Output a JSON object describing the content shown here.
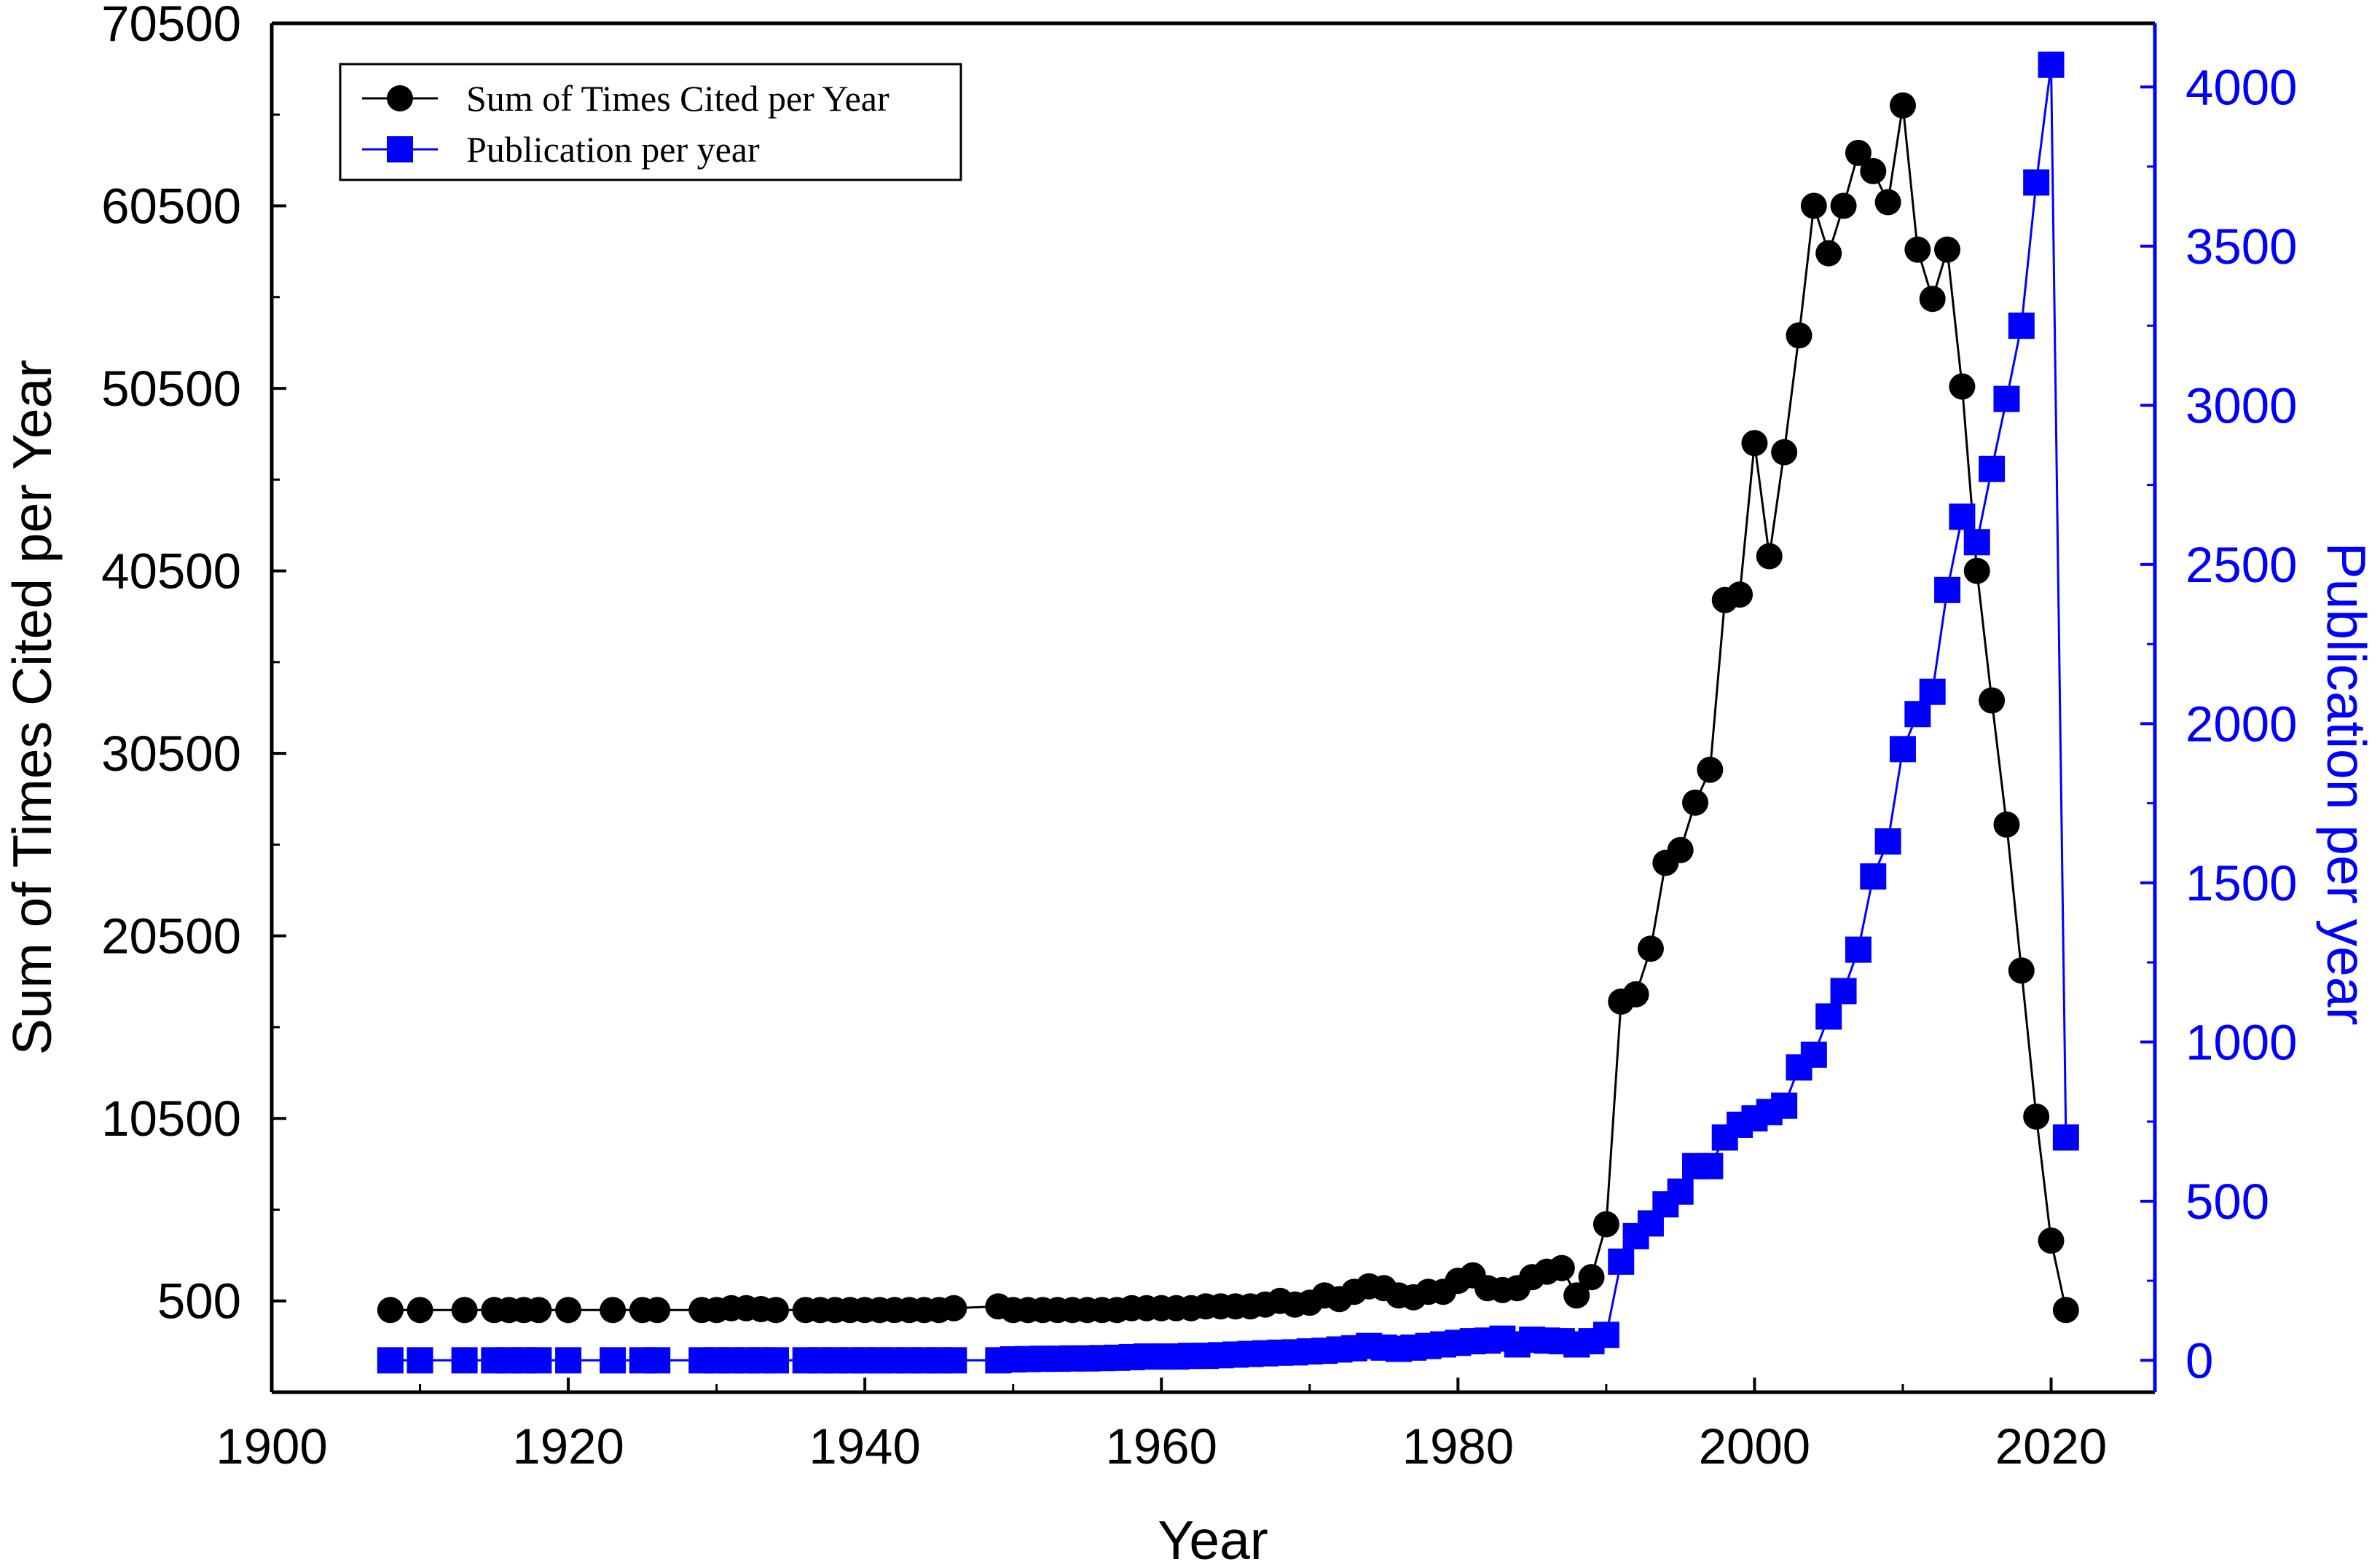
{
  "chart_data": {
    "type": "line",
    "title": "",
    "xlabel": "Year",
    "ylabel_left": "Sum of Times Cited per Year",
    "ylabel_right": "Publication per year",
    "xlim": [
      1900,
      2027
    ],
    "ylim_left": [
      -4500,
      70500
    ],
    "ylim_right": [
      -100,
      4200
    ],
    "x_ticks": [
      1900,
      1920,
      1940,
      1960,
      1980,
      2000,
      2020
    ],
    "y_left_ticks": [
      500,
      10500,
      20500,
      30500,
      40500,
      50500,
      60500,
      70500
    ],
    "y_right_ticks": [
      0,
      500,
      1000,
      1500,
      2000,
      2500,
      3000,
      3500,
      4000
    ],
    "grid": false,
    "legend_position": "top-left",
    "colors": {
      "cited": "#000000",
      "publication": "#0000ff",
      "right_axis": "#0000ff"
    },
    "series": [
      {
        "name": "Sum of Times Cited per Year",
        "axis": "left",
        "marker": "circle",
        "x": [
          1908,
          1910,
          1913,
          1915,
          1916,
          1917,
          1918,
          1920,
          1923,
          1925,
          1926,
          1929,
          1930,
          1931,
          1932,
          1933,
          1934,
          1936,
          1937,
          1938,
          1939,
          1940,
          1941,
          1942,
          1943,
          1944,
          1945,
          1946,
          1949,
          1950,
          1951,
          1952,
          1953,
          1954,
          1955,
          1956,
          1957,
          1958,
          1959,
          1960,
          1961,
          1962,
          1963,
          1964,
          1965,
          1966,
          1967,
          1968,
          1969,
          1970,
          1971,
          1972,
          1973,
          1974,
          1975,
          1976,
          1977,
          1978,
          1979,
          1980,
          1981,
          1982,
          1983,
          1984,
          1985,
          1986,
          1987,
          1988,
          1989,
          1990,
          1991,
          1992,
          1993,
          1994,
          1995,
          1996,
          1997,
          1998,
          1999,
          2000,
          2001,
          2002,
          2003,
          2004,
          2005,
          2006,
          2007,
          2008,
          2009,
          2010,
          2011,
          2012,
          2013,
          2014,
          2015,
          2016,
          2017,
          2018,
          2019,
          2020,
          2021
        ],
        "values": [
          0,
          0,
          0,
          0,
          0,
          0,
          0,
          0,
          0,
          0,
          0,
          0,
          0,
          100,
          100,
          50,
          0,
          0,
          0,
          0,
          0,
          0,
          0,
          0,
          0,
          0,
          0,
          100,
          200,
          0,
          0,
          0,
          0,
          0,
          0,
          0,
          0,
          100,
          100,
          100,
          100,
          100,
          200,
          200,
          200,
          200,
          300,
          500,
          300,
          400,
          800,
          600,
          1000,
          1300,
          1200,
          800,
          700,
          1000,
          1000,
          1600,
          1900,
          1200,
          1100,
          1200,
          1800,
          2100,
          2300,
          800,
          1800,
          4700,
          16900,
          17300,
          19800,
          24500,
          25200,
          27800,
          29600,
          38900,
          39200,
          47500,
          41300,
          47000,
          53400,
          60500,
          57900,
          60500,
          63400,
          62400,
          60700,
          66000,
          58100,
          55400,
          58100,
          50600,
          40500,
          33400,
          26600,
          18600,
          10600,
          3800,
          0
        ],
        "values_note": ""
      },
      {
        "name": "Publication per year",
        "axis": "right",
        "marker": "square",
        "x": [
          1908,
          1910,
          1913,
          1915,
          1916,
          1917,
          1918,
          1920,
          1923,
          1925,
          1926,
          1929,
          1930,
          1931,
          1932,
          1933,
          1934,
          1936,
          1937,
          1938,
          1939,
          1940,
          1941,
          1942,
          1943,
          1944,
          1945,
          1946,
          1949,
          1950,
          1951,
          1952,
          1953,
          1954,
          1955,
          1956,
          1957,
          1958,
          1959,
          1960,
          1961,
          1962,
          1963,
          1964,
          1965,
          1966,
          1967,
          1968,
          1969,
          1970,
          1971,
          1972,
          1973,
          1974,
          1975,
          1976,
          1977,
          1978,
          1979,
          1980,
          1981,
          1982,
          1983,
          1984,
          1985,
          1986,
          1987,
          1988,
          1989,
          1990,
          1991,
          1992,
          1993,
          1994,
          1995,
          1996,
          1997,
          1998,
          1999,
          2000,
          2001,
          2002,
          2003,
          2004,
          2005,
          2006,
          2007,
          2008,
          2009,
          2010,
          2011,
          2012,
          2013,
          2014,
          2015,
          2016,
          2017,
          2018,
          2019,
          2020,
          2021
        ],
        "values": [
          0,
          0,
          0,
          0,
          0,
          0,
          0,
          0,
          0,
          0,
          0,
          0,
          0,
          0,
          0,
          0,
          0,
          0,
          0,
          0,
          0,
          0,
          0,
          0,
          0,
          0,
          0,
          0,
          0,
          3,
          4,
          5,
          5,
          6,
          6,
          7,
          8,
          10,
          12,
          12,
          12,
          14,
          14,
          16,
          18,
          20,
          22,
          24,
          25,
          28,
          30,
          34,
          38,
          45,
          40,
          36,
          40,
          45,
          50,
          55,
          60,
          62,
          68,
          50,
          65,
          62,
          60,
          50,
          60,
          80,
          310,
          390,
          430,
          490,
          530,
          610,
          610,
          700,
          740,
          760,
          780,
          800,
          920,
          960,
          1080,
          1160,
          1290,
          1520,
          1630,
          1920,
          2030,
          2100,
          2420,
          2650,
          2570,
          2800,
          3020,
          3250,
          3700,
          4070,
          700
        ]
      }
    ]
  },
  "legend": {
    "items": [
      {
        "label": "Sum of Times Cited per Year",
        "color": "#000000",
        "marker": "circle"
      },
      {
        "label": "Publication per year",
        "color": "#0000ff",
        "marker": "square"
      }
    ]
  }
}
